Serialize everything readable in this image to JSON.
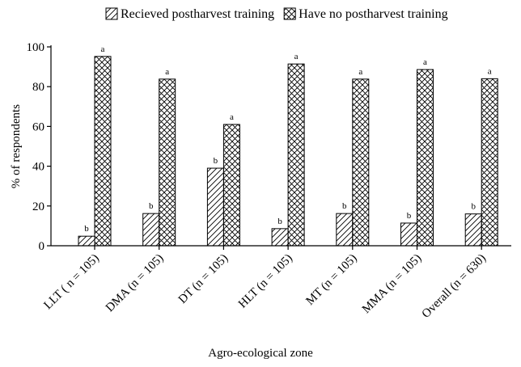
{
  "chart_data": {
    "type": "bar",
    "x_label": "Agro-ecological zone",
    "y_label": "% of respondents",
    "categories": [
      "LLT ( n = 105)",
      "DMA (n = 105)",
      "DT (n = 105)",
      "HLT (n = 105)",
      "MT (n = 105)",
      "MMA (n = 105)",
      "Overall (n = 630)"
    ],
    "series": [
      {
        "name": "Recieved postharvest training",
        "color": "#000000",
        "hatch": "diagonal",
        "values": [
          4.8,
          16.2,
          39,
          8.6,
          16.2,
          11.4,
          16
        ],
        "labels": [
          "b",
          "b",
          "b",
          "b",
          "b",
          "b",
          "b"
        ]
      },
      {
        "name": "Have no postharvest training",
        "color": "#000000",
        "hatch": "cross",
        "values": [
          95.2,
          83.8,
          61,
          91.4,
          83.8,
          88.6,
          84
        ],
        "labels": [
          "a",
          "a",
          "a",
          "a",
          "a",
          "a",
          "a"
        ]
      }
    ],
    "ylim": [
      0,
      100
    ],
    "yticks": [
      0,
      20,
      40,
      60,
      80,
      100
    ],
    "grid": false,
    "legend": "top"
  }
}
